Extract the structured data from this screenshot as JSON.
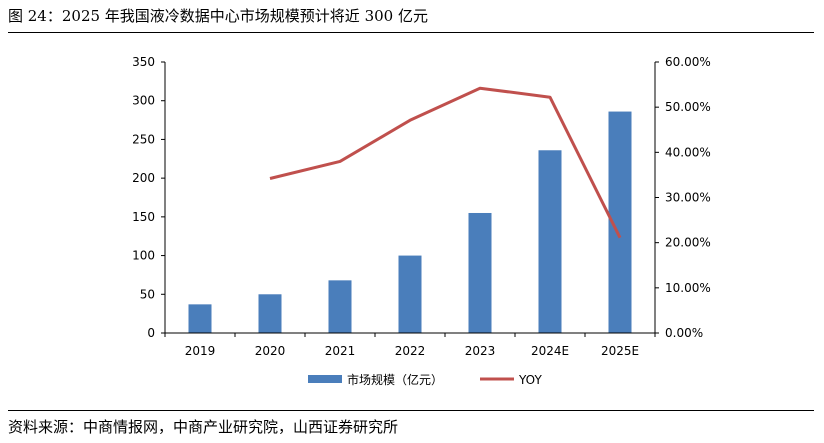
{
  "figure": {
    "title": "图 24：2025 年我国液冷数据中心市场规模预计将近 300 亿元",
    "source": "资料来源：中商情报网，中商产业研究院，山西证券研究所"
  },
  "chart_data": {
    "type": "bar+line",
    "categories": [
      "2019",
      "2020",
      "2021",
      "2022",
      "2023",
      "2024E",
      "2025E"
    ],
    "series": [
      {
        "name": "市场规模（亿元）",
        "type": "bar",
        "axis": "left",
        "color": "#4a7ebb",
        "values": [
          37,
          50,
          68,
          100,
          155,
          236,
          286
        ]
      },
      {
        "name": "YOY",
        "type": "line",
        "axis": "right",
        "color": "#c0504d",
        "values": [
          null,
          34.2,
          38.0,
          47.1,
          54.2,
          52.2,
          21.1
        ]
      }
    ],
    "y_left": {
      "min": 0,
      "max": 350,
      "step": 50,
      "ticks": [
        "0",
        "50",
        "100",
        "150",
        "200",
        "250",
        "300",
        "350"
      ]
    },
    "y_right": {
      "min": 0,
      "max": 60,
      "step": 10,
      "ticks": [
        "0.00%",
        "10.00%",
        "20.00%",
        "30.00%",
        "40.00%",
        "50.00%",
        "60.00%"
      ]
    },
    "legend_position": "bottom",
    "grid": false
  }
}
